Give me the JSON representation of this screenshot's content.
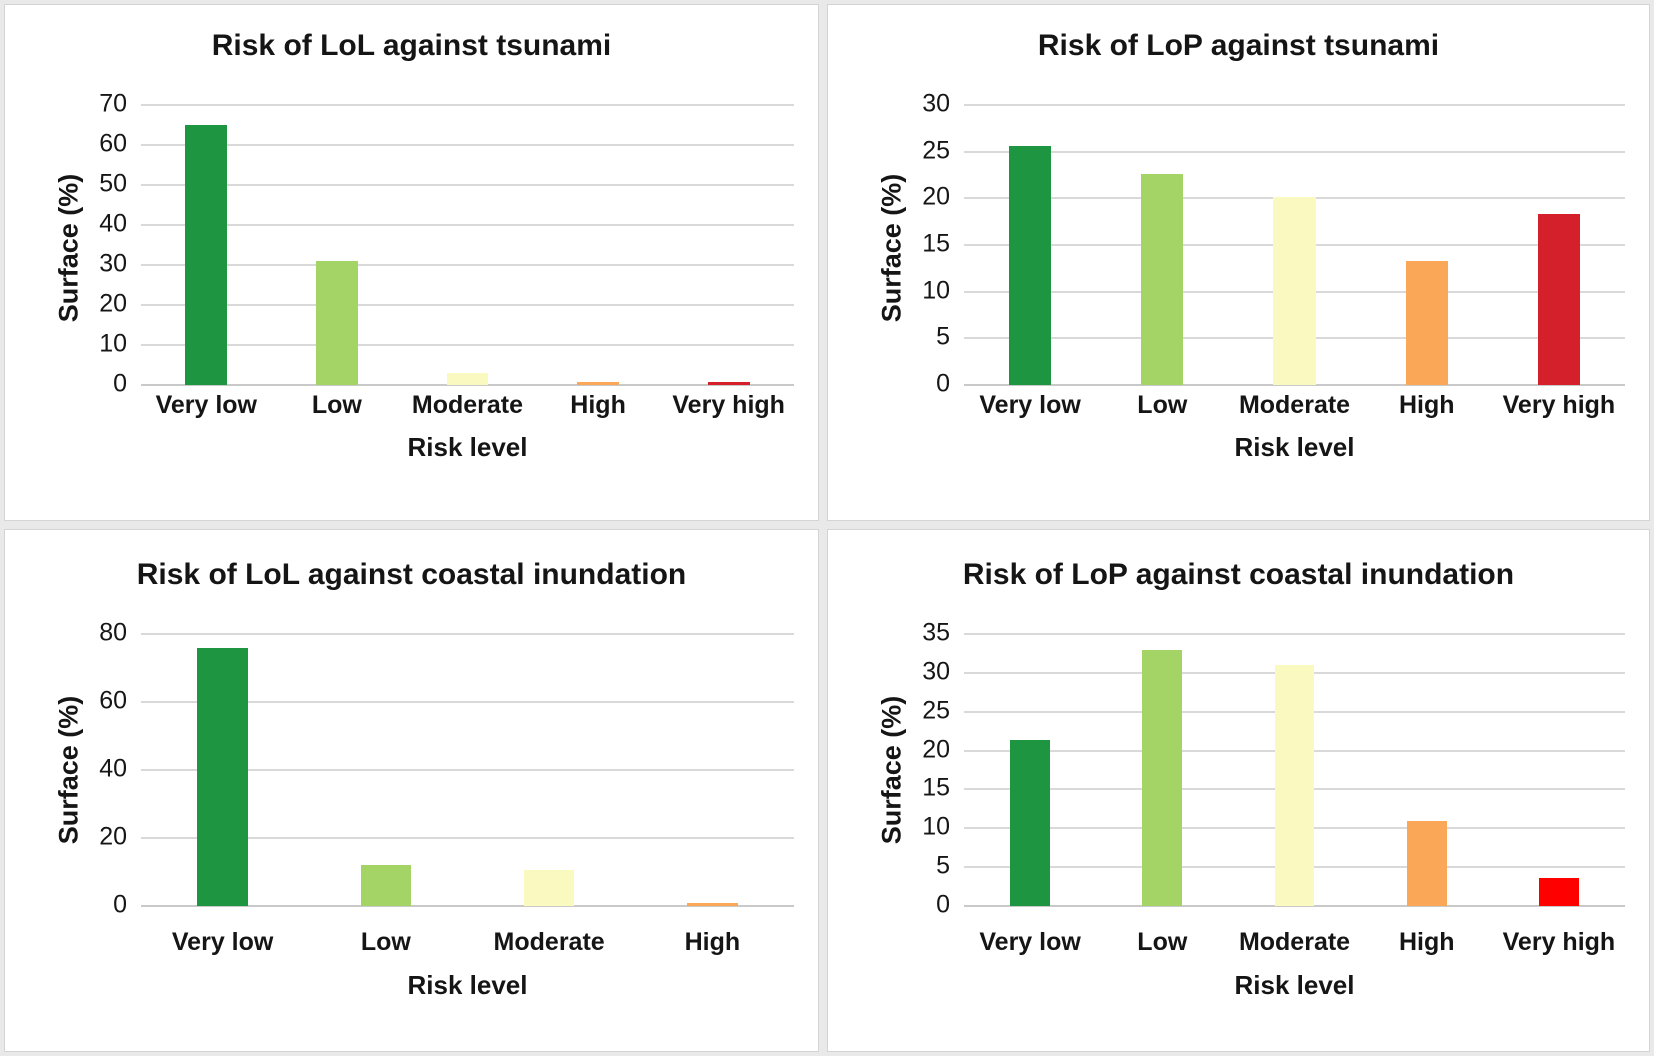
{
  "figure": {
    "background_color": "#E9E9E9",
    "panel_background_color": "#FFFFFF",
    "panel_border_color": "#D4D4D4",
    "gridline_color": "#D9D9D9",
    "risk_level_palette": {
      "very_low": "#1E9641",
      "low": "#A5D466",
      "moderate": "#FAFAC0",
      "high": "#FAA857",
      "very_high_crimson": "#D4202A",
      "very_high_bright_red": "#FE0000"
    }
  },
  "chart_data": [
    {
      "type": "bar",
      "title": "Risk of LoL against tsunami",
      "xlabel": "Risk level",
      "ylabel": "Surface (%)",
      "categories": [
        "Very low",
        "Low",
        "Moderate",
        "High",
        "Very high"
      ],
      "values": [
        65,
        31,
        3,
        0.8,
        0.8
      ],
      "ylim": [
        0,
        70
      ],
      "ytick_step": 10,
      "grid": true,
      "legend": false,
      "bar_colors": [
        "#1E9641",
        "#A5D466",
        "#FAFAC0",
        "#FAA857",
        "#D4202A"
      ],
      "bar_width_pct": 32
    },
    {
      "type": "bar",
      "title": "Risk of LoP against tsunami",
      "xlabel": "Risk level",
      "ylabel": "Surface (%)",
      "categories": [
        "Very low",
        "Low",
        "Moderate",
        "High",
        "Very high"
      ],
      "values": [
        25.6,
        22.6,
        20.1,
        13.3,
        18.3
      ],
      "ylim": [
        0,
        30
      ],
      "ytick_step": 5,
      "grid": true,
      "legend": false,
      "bar_colors": [
        "#1E9641",
        "#A5D466",
        "#FAFAC0",
        "#FAA857",
        "#D4202A"
      ],
      "bar_width_pct": 32
    },
    {
      "type": "bar",
      "title": "Risk of LoL against coastal inundation",
      "xlabel": "Risk level",
      "ylabel": "Surface (%)",
      "categories": [
        "Very low",
        "Low",
        "Moderate",
        "High"
      ],
      "values": [
        76,
        12,
        10.6,
        0.9
      ],
      "ylim": [
        0,
        80
      ],
      "ytick_step": 20,
      "grid": true,
      "legend": false,
      "bar_colors": [
        "#1E9641",
        "#A5D466",
        "#FAFAC0",
        "#FAA857"
      ],
      "bar_width_pct": 31
    },
    {
      "type": "bar",
      "title": "Risk of LoP against coastal inundation",
      "xlabel": "Risk level",
      "ylabel": "Surface (%)",
      "categories": [
        "Very low",
        "Low",
        "Moderate",
        "High",
        "Very high"
      ],
      "values": [
        21.3,
        33,
        31,
        11,
        3.6
      ],
      "ylim": [
        0,
        35
      ],
      "ytick_step": 5,
      "grid": true,
      "legend": false,
      "bar_colors": [
        "#1E9641",
        "#A5D466",
        "#FAFAC0",
        "#FAA857",
        "#FE0000"
      ],
      "bar_width_pct": 30
    }
  ]
}
